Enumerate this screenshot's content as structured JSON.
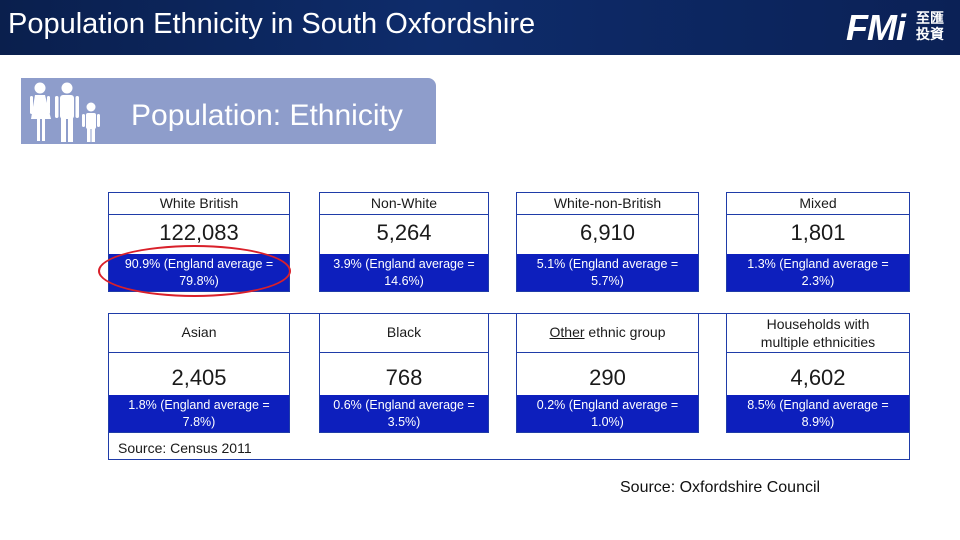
{
  "header": {
    "title": "Population Ethnicity in South Oxfordshire",
    "logo_text": "FMi",
    "logo_cn_line1": "至匯",
    "logo_cn_line2": "投資"
  },
  "banner": {
    "icon": "family-icon",
    "title": "Population: Ethnicity"
  },
  "cards": [
    {
      "name": "White British",
      "value": "122,083",
      "pct_line1": "90.9% (England average =",
      "pct_line2": "79.8%)"
    },
    {
      "name": "Non-White",
      "value": "5,264",
      "pct_line1": "3.9% (England average =",
      "pct_line2": "14.6%)"
    },
    {
      "name": "White-non-British",
      "value": "6,910",
      "pct_line1": "5.1% (England average =",
      "pct_line2": "5.7%)"
    },
    {
      "name": "Mixed",
      "value": "1,801",
      "pct_line1": "1.3% (England average =",
      "pct_line2": "2.3%)"
    },
    {
      "name": "Asian",
      "value": "2,405",
      "pct_line1": "1.8% (England average =",
      "pct_line2": "7.8%)"
    },
    {
      "name": "Black",
      "value": "768",
      "pct_line1": "0.6% (England average =",
      "pct_line2": "3.5%)"
    },
    {
      "name_underlined": "Other",
      "name_rest": " ethnic group",
      "value": "290",
      "pct_line1": "0.2% (England average =",
      "pct_line2": "1.0%)"
    },
    {
      "name_line1": "Households with",
      "name_line2": "multiple ethnicities",
      "value": "4,602",
      "pct_line1": "8.5% (England average =",
      "pct_line2": "8.9%)"
    }
  ],
  "table_source": "Source: Census 2011",
  "footer_source": "Source: Oxfordshire Council",
  "colors": {
    "header_bg": "#0e2c6b",
    "banner_bg": "#8e9dcb",
    "pct_bg": "#0d1fbd",
    "border": "#1f3ca8",
    "highlight": "#d9202a"
  }
}
